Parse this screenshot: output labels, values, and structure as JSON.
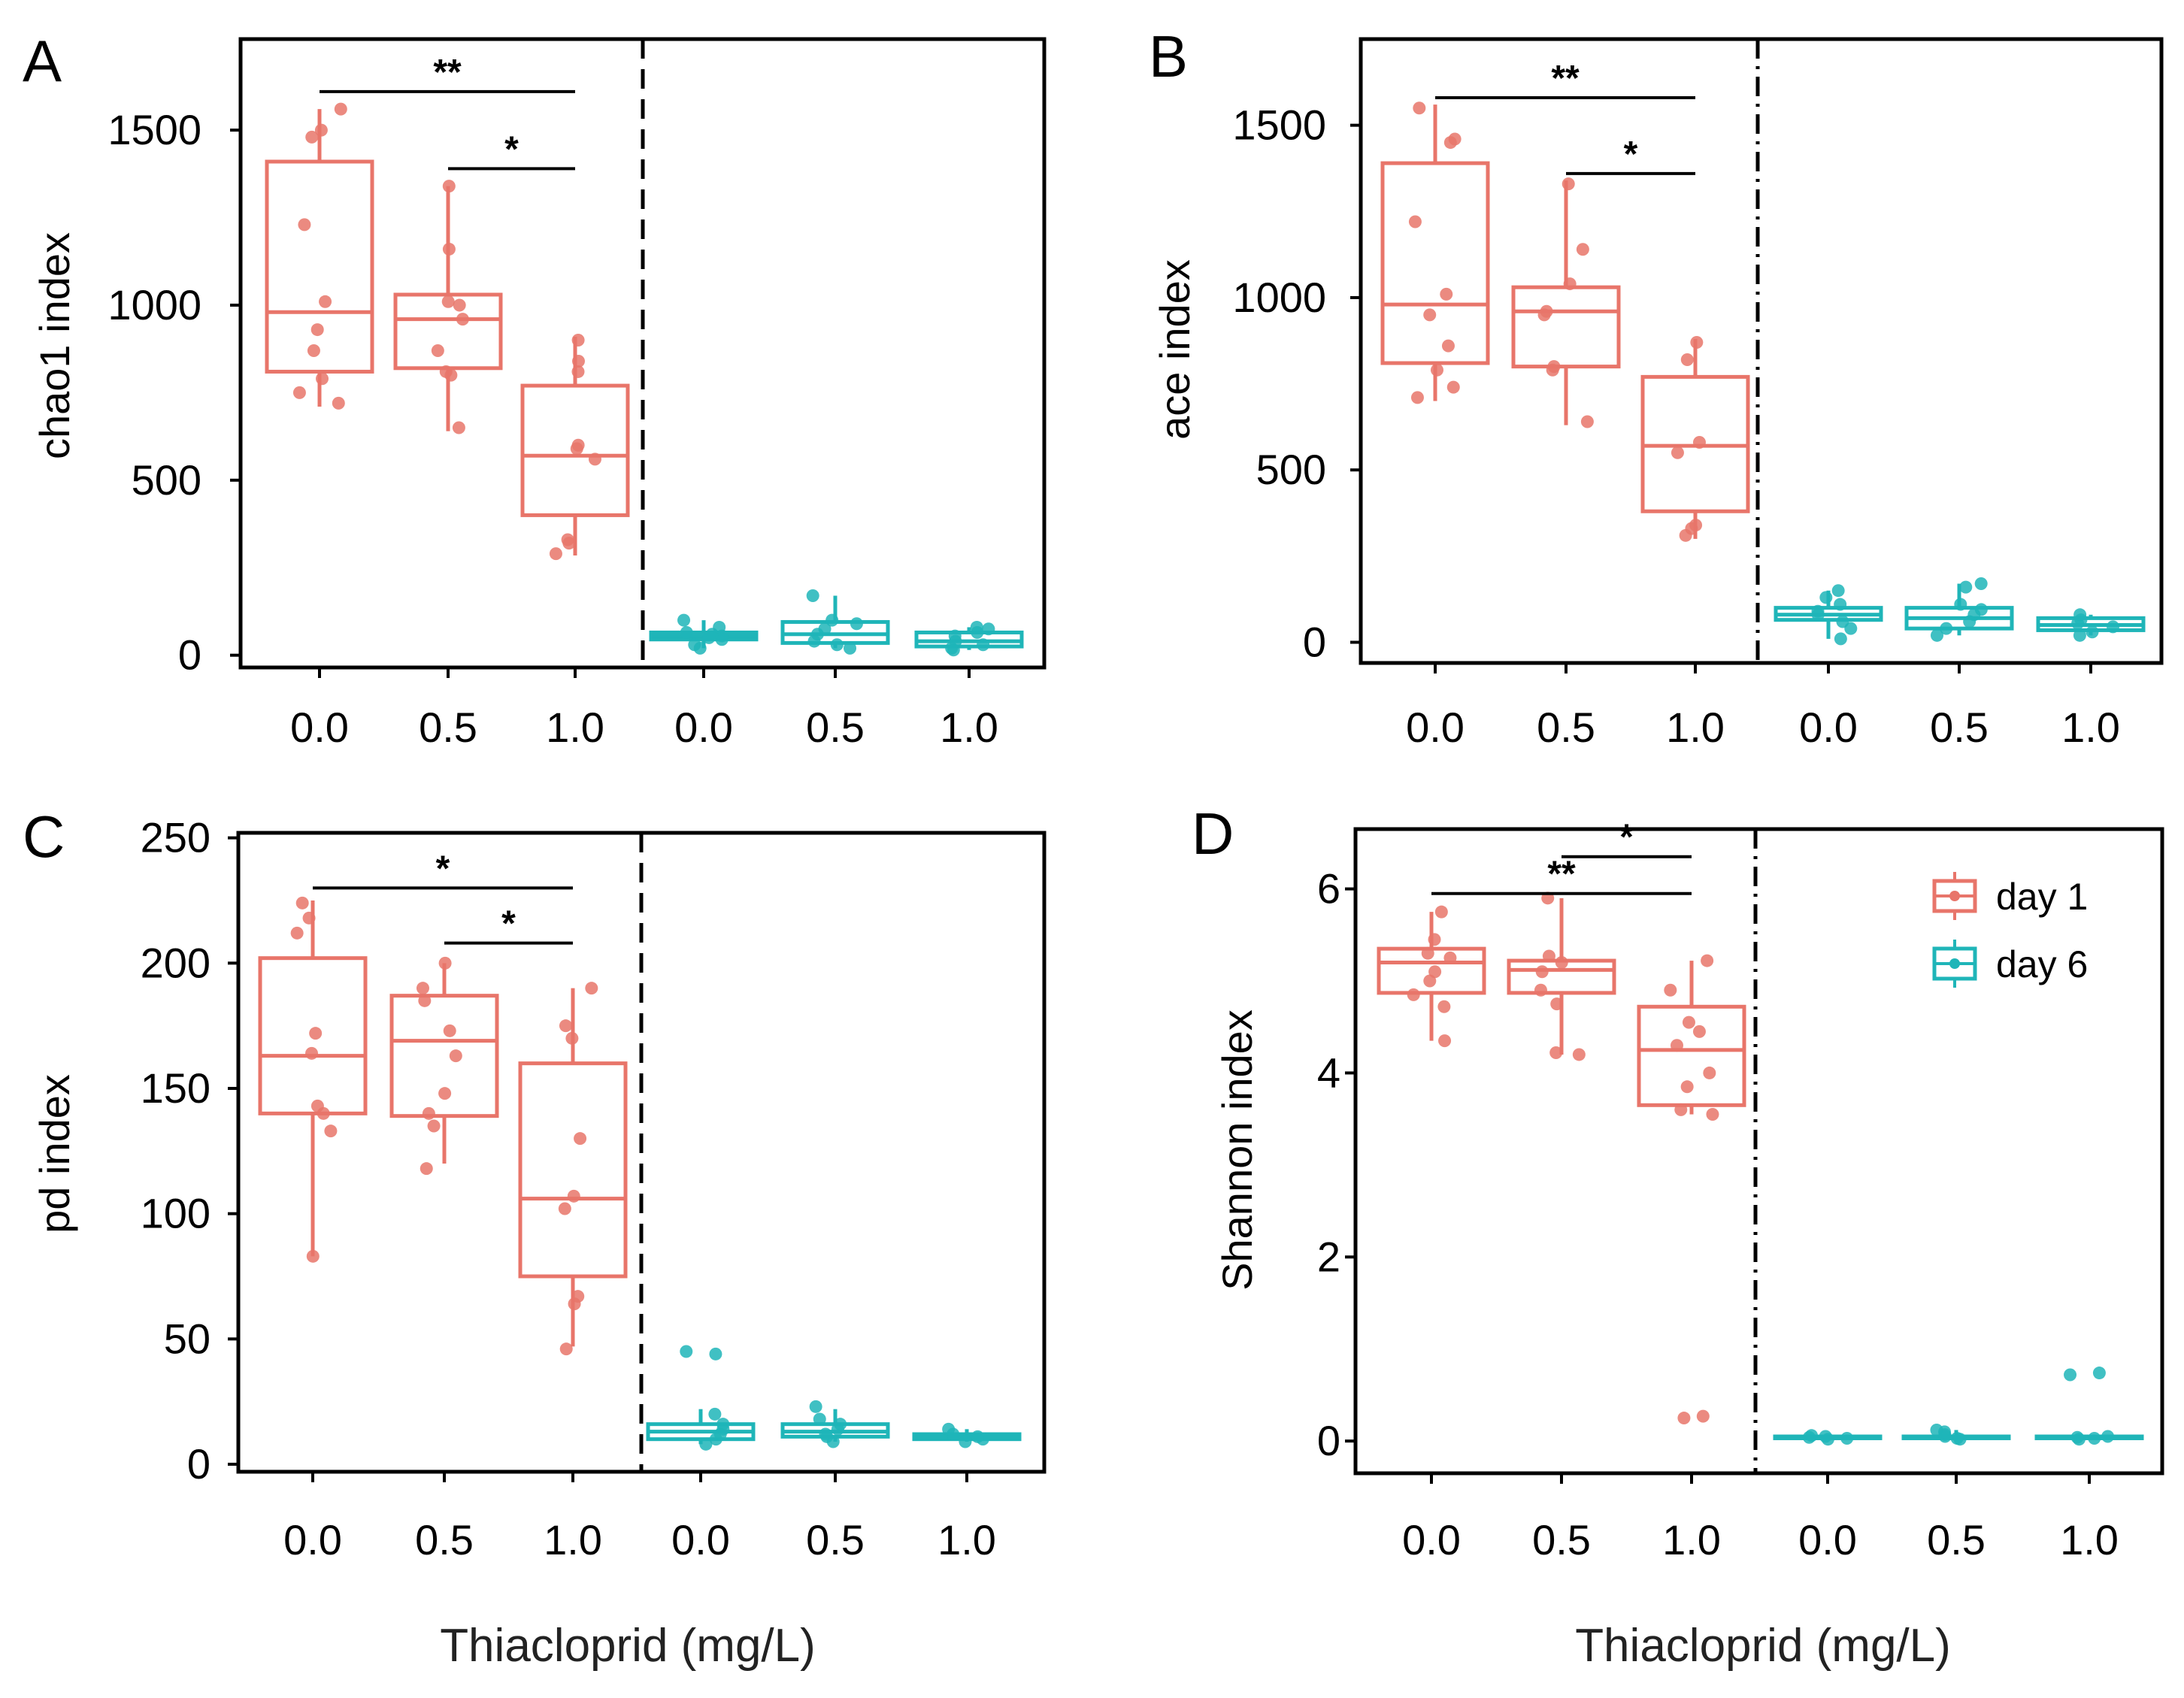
{
  "figure": {
    "x_label_left": "Thiacloprid (mg/L)",
    "x_label_right": "Thiacloprid (mg/L)"
  },
  "legend": {
    "items": [
      {
        "label": "day 1",
        "color": "#E8756A"
      },
      {
        "label": "day 6",
        "color": "#1FB5B8"
      }
    ]
  },
  "chart_data": [
    {
      "panel": "A",
      "type": "box",
      "ylabel": "chao1 index",
      "ylim": [
        -35,
        1760
      ],
      "yticks": [
        0,
        500,
        1000,
        1500
      ],
      "categories": [
        "0.0",
        "0.5",
        "1.0",
        "0.0",
        "0.5",
        "1.0"
      ],
      "groups": [
        {
          "series": "day 1",
          "x": "0.0",
          "min": 710,
          "q1": 810,
          "median": 980,
          "q3": 1410,
          "max": 1560,
          "points": [
            720,
            750,
            790,
            870,
            930,
            1010,
            1230,
            1480,
            1500,
            1560
          ]
        },
        {
          "series": "day 1",
          "x": "0.5",
          "min": 640,
          "q1": 820,
          "median": 960,
          "q3": 1030,
          "max": 1340,
          "points": [
            650,
            800,
            810,
            870,
            960,
            1000,
            1010,
            1160,
            1340
          ]
        },
        {
          "series": "day 1",
          "x": "1.0",
          "min": 285,
          "q1": 400,
          "median": 570,
          "q3": 770,
          "max": 910,
          "points": [
            290,
            320,
            330,
            560,
            590,
            600,
            810,
            840,
            900
          ]
        },
        {
          "series": "day 6",
          "x": "0.0",
          "min": 20,
          "q1": 45,
          "median": 55,
          "q3": 65,
          "max": 100,
          "points": [
            20,
            30,
            45,
            50,
            55,
            60,
            65,
            80,
            100
          ]
        },
        {
          "series": "day 6",
          "x": "0.5",
          "min": 20,
          "q1": 35,
          "median": 60,
          "q3": 95,
          "max": 170,
          "points": [
            20,
            30,
            40,
            60,
            75,
            90,
            100,
            170
          ]
        },
        {
          "series": "day 6",
          "x": "1.0",
          "min": 15,
          "q1": 25,
          "median": 40,
          "q3": 65,
          "max": 80,
          "points": [
            15,
            20,
            30,
            40,
            55,
            65,
            75,
            80
          ]
        }
      ],
      "significance": [
        {
          "from": "0.0",
          "to": "1.0",
          "y": 1610,
          "label": "**"
        },
        {
          "from": "0.5",
          "to": "1.0",
          "y": 1390,
          "label": "*"
        }
      ]
    },
    {
      "panel": "B",
      "type": "box",
      "ylabel": "ace index",
      "ylim": [
        -60,
        1750
      ],
      "yticks": [
        0,
        500,
        1000,
        1500
      ],
      "categories": [
        "0.0",
        "0.5",
        "1.0",
        "0.0",
        "0.5",
        "1.0"
      ],
      "groups": [
        {
          "series": "day 1",
          "x": "0.0",
          "min": 700,
          "q1": 810,
          "median": 980,
          "q3": 1390,
          "max": 1560,
          "points": [
            710,
            740,
            790,
            860,
            950,
            1010,
            1220,
            1450,
            1460,
            1550
          ]
        },
        {
          "series": "day 1",
          "x": "0.5",
          "min": 630,
          "q1": 800,
          "median": 960,
          "q3": 1030,
          "max": 1340,
          "points": [
            640,
            790,
            800,
            950,
            960,
            1040,
            1140,
            1330
          ]
        },
        {
          "series": "day 1",
          "x": "1.0",
          "min": 300,
          "q1": 380,
          "median": 570,
          "q3": 770,
          "max": 880,
          "points": [
            310,
            330,
            340,
            550,
            580,
            820,
            870
          ]
        },
        {
          "series": "day 6",
          "x": "0.0",
          "min": 10,
          "q1": 65,
          "median": 80,
          "q3": 100,
          "max": 150,
          "points": [
            10,
            40,
            60,
            80,
            90,
            110,
            130,
            150
          ]
        },
        {
          "series": "day 6",
          "x": "0.5",
          "min": 20,
          "q1": 40,
          "median": 70,
          "q3": 100,
          "max": 170,
          "points": [
            20,
            40,
            60,
            80,
            95,
            110,
            160,
            170
          ]
        },
        {
          "series": "day 6",
          "x": "1.0",
          "min": 20,
          "q1": 35,
          "median": 50,
          "q3": 70,
          "max": 80,
          "points": [
            20,
            30,
            45,
            55,
            65,
            80
          ]
        }
      ],
      "significance": [
        {
          "from": "0.0",
          "to": "1.0",
          "y": 1580,
          "label": "**"
        },
        {
          "from": "0.5",
          "to": "1.0",
          "y": 1360,
          "label": "*"
        }
      ]
    },
    {
      "panel": "C",
      "type": "box",
      "ylabel": "pd index",
      "ylim": [
        -3,
        252
      ],
      "yticks": [
        0,
        50,
        100,
        150,
        200,
        250
      ],
      "categories": [
        "0.0",
        "0.5",
        "1.0",
        "0.0",
        "0.5",
        "1.0"
      ],
      "groups": [
        {
          "series": "day 1",
          "x": "0.0",
          "min": 83,
          "q1": 140,
          "median": 163,
          "q3": 202,
          "max": 225,
          "points": [
            83,
            133,
            140,
            143,
            164,
            172,
            212,
            218,
            224
          ]
        },
        {
          "series": "day 1",
          "x": "0.5",
          "min": 120,
          "q1": 139,
          "median": 169,
          "q3": 187,
          "max": 200,
          "points": [
            118,
            135,
            140,
            148,
            163,
            173,
            185,
            190,
            200
          ]
        },
        {
          "series": "day 1",
          "x": "1.0",
          "min": 47,
          "q1": 75,
          "median": 106,
          "q3": 160,
          "max": 190,
          "points": [
            46,
            64,
            67,
            102,
            107,
            130,
            170,
            175,
            190
          ]
        },
        {
          "series": "day 6",
          "x": "0.0",
          "min": 8,
          "q1": 10,
          "median": 13,
          "q3": 16,
          "max": 22,
          "points": [
            8,
            10,
            12,
            14,
            16,
            20,
            44,
            45
          ]
        },
        {
          "series": "day 6",
          "x": "0.5",
          "min": 9,
          "q1": 11,
          "median": 13,
          "q3": 16,
          "max": 22,
          "points": [
            9,
            11,
            12,
            14,
            16,
            18,
            23
          ]
        },
        {
          "series": "day 6",
          "x": "1.0",
          "min": 9,
          "q1": 10,
          "median": 11,
          "q3": 12,
          "max": 14,
          "points": [
            9,
            10,
            11,
            12,
            14
          ]
        }
      ],
      "significance": [
        {
          "from": "0.0",
          "to": "1.0",
          "y": 230,
          "label": "*"
        },
        {
          "from": "0.5",
          "to": "1.0",
          "y": 208,
          "label": "*"
        }
      ]
    },
    {
      "panel": "D",
      "type": "box",
      "ylabel": "Shannon index",
      "ylim": [
        -0.35,
        6.65
      ],
      "yticks": [
        0,
        2,
        4,
        6
      ],
      "categories": [
        "0.0",
        "0.5",
        "1.0",
        "0.0",
        "0.5",
        "1.0"
      ],
      "groups": [
        {
          "series": "day 1",
          "x": "0.0",
          "min": 4.35,
          "q1": 4.87,
          "median": 5.2,
          "q3": 5.35,
          "max": 5.75,
          "points": [
            4.35,
            4.72,
            4.85,
            5.0,
            5.1,
            5.25,
            5.3,
            5.45,
            5.75
          ]
        },
        {
          "series": "day 1",
          "x": "0.5",
          "min": 4.2,
          "q1": 4.87,
          "median": 5.12,
          "q3": 5.22,
          "max": 5.9,
          "points": [
            4.2,
            4.22,
            4.75,
            4.9,
            5.1,
            5.2,
            5.27,
            5.9
          ]
        },
        {
          "series": "day 1",
          "x": "1.0",
          "min": 3.55,
          "q1": 3.65,
          "median": 4.25,
          "q3": 4.72,
          "max": 5.22,
          "points": [
            0.25,
            0.27,
            3.55,
            3.6,
            3.85,
            4.0,
            4.3,
            4.45,
            4.55,
            4.9,
            5.22
          ]
        },
        {
          "series": "day 6",
          "x": "0.0",
          "min": 0.02,
          "q1": 0.03,
          "median": 0.04,
          "q3": 0.05,
          "max": 0.07,
          "points": [
            0.02,
            0.03,
            0.04,
            0.05,
            0.06
          ]
        },
        {
          "series": "day 6",
          "x": "0.5",
          "min": 0.02,
          "q1": 0.03,
          "median": 0.04,
          "q3": 0.05,
          "max": 0.12,
          "points": [
            0.02,
            0.03,
            0.05,
            0.07,
            0.1,
            0.12
          ]
        },
        {
          "series": "day 6",
          "x": "1.0",
          "min": 0.02,
          "q1": 0.03,
          "median": 0.04,
          "q3": 0.05,
          "max": 0.07,
          "points": [
            0.02,
            0.03,
            0.04,
            0.05,
            0.72,
            0.74
          ]
        }
      ],
      "significance": [
        {
          "from": "0.5",
          "to": "1.0",
          "y": 6.35,
          "label": "*"
        },
        {
          "from": "0.0",
          "to": "1.0",
          "y": 5.95,
          "label": "**"
        }
      ]
    }
  ]
}
